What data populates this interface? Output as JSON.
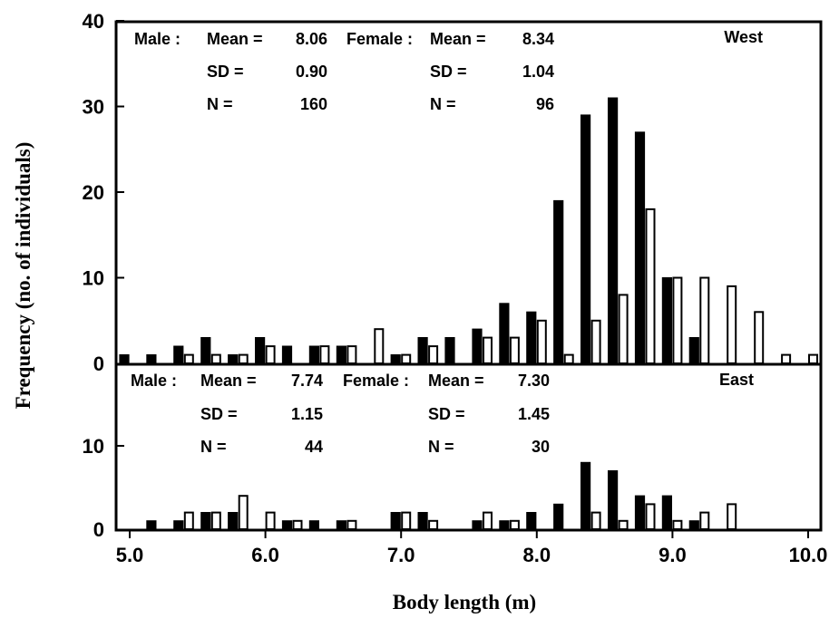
{
  "chart_data": {
    "type": "bar",
    "xlabel": "Body length (m)",
    "ylabel": "Frequency (no. of individuals)",
    "xlim": [
      4.9,
      10.1
    ],
    "x_ticks": [
      "5.0",
      "6.0",
      "7.0",
      "8.0",
      "9.0",
      "10.0"
    ],
    "colors": {
      "male": "#000000",
      "female": "#ffffff",
      "stroke": "#000000"
    },
    "panels": [
      {
        "region": "West",
        "ylim": [
          0,
          40
        ],
        "y_ticks": [
          "0",
          "10",
          "20",
          "30",
          "40"
        ],
        "stats": {
          "male": {
            "label": "Male :",
            "mean_label": "Mean =",
            "mean": "8.06",
            "sd_label": "SD =",
            "sd": "0.90",
            "n_label": "N =",
            "n": "160"
          },
          "female": {
            "label": "Female :",
            "mean_label": "Mean =",
            "mean": "8.34",
            "sd_label": "SD =",
            "sd": "1.04",
            "n_label": "N =",
            "n": "96"
          }
        },
        "bins": [
          5.0,
          5.2,
          5.4,
          5.6,
          5.8,
          6.0,
          6.2,
          6.4,
          6.6,
          6.8,
          7.0,
          7.2,
          7.4,
          7.6,
          7.8,
          8.0,
          8.2,
          8.4,
          8.6,
          8.8,
          9.0,
          9.2,
          9.4,
          9.6,
          9.8,
          10.0
        ],
        "series": [
          {
            "values": [
              1,
              1,
              2,
              3,
              1,
              3,
              2,
              2,
              2,
              0,
              1,
              3,
              3,
              4,
              7,
              6,
              19,
              29,
              31,
              27,
              10,
              3,
              0,
              0,
              0,
              0
            ]
          },
          {
            "values": [
              0,
              0,
              1,
              1,
              1,
              2,
              0,
              2,
              2,
              4,
              1,
              2,
              0,
              3,
              3,
              5,
              1,
              5,
              8,
              18,
              10,
              10,
              9,
              6,
              1,
              1
            ]
          }
        ]
      },
      {
        "region": "East",
        "ylim": [
          0,
          20
        ],
        "y_ticks": [
          "0",
          "10"
        ],
        "stats": {
          "male": {
            "label": "Male :",
            "mean_label": "Mean =",
            "mean": "7.74",
            "sd_label": "SD =",
            "sd": "1.15",
            "n_label": "N =",
            "n": "44"
          },
          "female": {
            "label": "Female :",
            "mean_label": "Mean =",
            "mean": "7.30",
            "sd_label": "SD =",
            "sd": "1.45",
            "n_label": "N =",
            "n": "30"
          }
        },
        "bins": [
          5.0,
          5.2,
          5.4,
          5.6,
          5.8,
          6.0,
          6.2,
          6.4,
          6.6,
          6.8,
          7.0,
          7.2,
          7.4,
          7.6,
          7.8,
          8.0,
          8.2,
          8.4,
          8.6,
          8.8,
          9.0,
          9.2,
          9.4,
          9.6,
          9.8,
          10.0
        ],
        "series": [
          {
            "values": [
              0,
              1,
              1,
              2,
              2,
              0,
              1,
              1,
              1,
              0,
              2,
              2,
              0,
              1,
              1,
              2,
              3,
              8,
              7,
              4,
              4,
              1,
              0,
              0,
              0,
              0
            ]
          },
          {
            "values": [
              0,
              0,
              2,
              2,
              4,
              2,
              1,
              0,
              1,
              0,
              2,
              1,
              0,
              2,
              1,
              0,
              0,
              2,
              1,
              3,
              1,
              2,
              3,
              0,
              0,
              0
            ]
          }
        ]
      }
    ]
  }
}
